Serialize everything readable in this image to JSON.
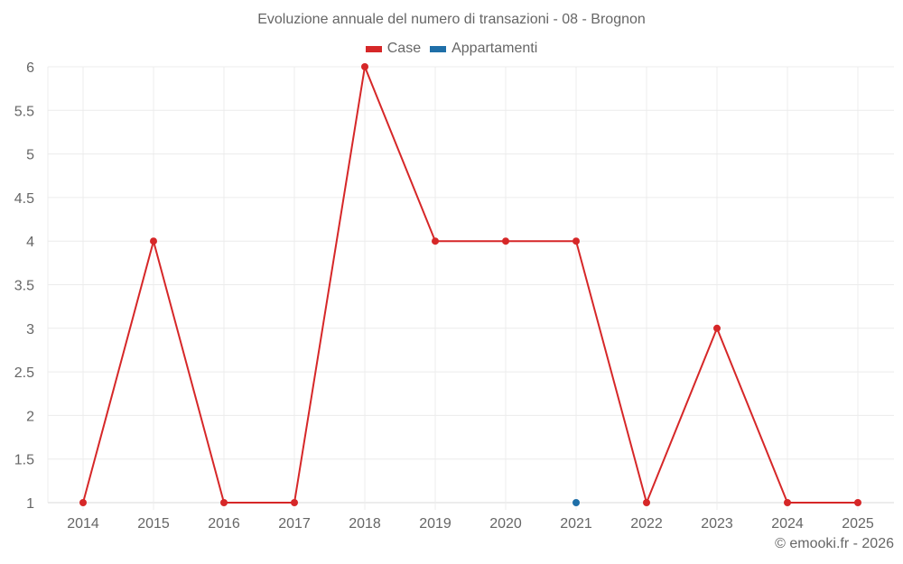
{
  "title": "Evoluzione annuale del numero di transazioni - 08 - Brognon",
  "legend": [
    {
      "label": "Case",
      "color": "#d62728"
    },
    {
      "label": "Appartamenti",
      "color": "#1f6fa8"
    }
  ],
  "credit": "© emooki.fr - 2026",
  "chart_data": {
    "type": "line",
    "title": "Evoluzione annuale del numero di transazioni - 08 - Brognon",
    "xlabel": "",
    "ylabel": "",
    "categories": [
      "2014",
      "2015",
      "2016",
      "2017",
      "2018",
      "2019",
      "2020",
      "2021",
      "2022",
      "2023",
      "2024",
      "2025"
    ],
    "series": [
      {
        "name": "Case",
        "color": "#d62728",
        "values": [
          1,
          4,
          1,
          1,
          6,
          4,
          4,
          4,
          1,
          3,
          1,
          1
        ]
      },
      {
        "name": "Appartamenti",
        "color": "#1f6fa8",
        "values": [
          null,
          null,
          null,
          null,
          null,
          null,
          null,
          1,
          null,
          null,
          null,
          null
        ]
      }
    ],
    "yticks": [
      "1",
      "1.5",
      "2",
      "2.5",
      "3",
      "3.5",
      "4",
      "4.5",
      "5",
      "5.5",
      "6"
    ],
    "ylim": [
      1,
      6
    ],
    "grid": true,
    "legend_position": "top"
  }
}
